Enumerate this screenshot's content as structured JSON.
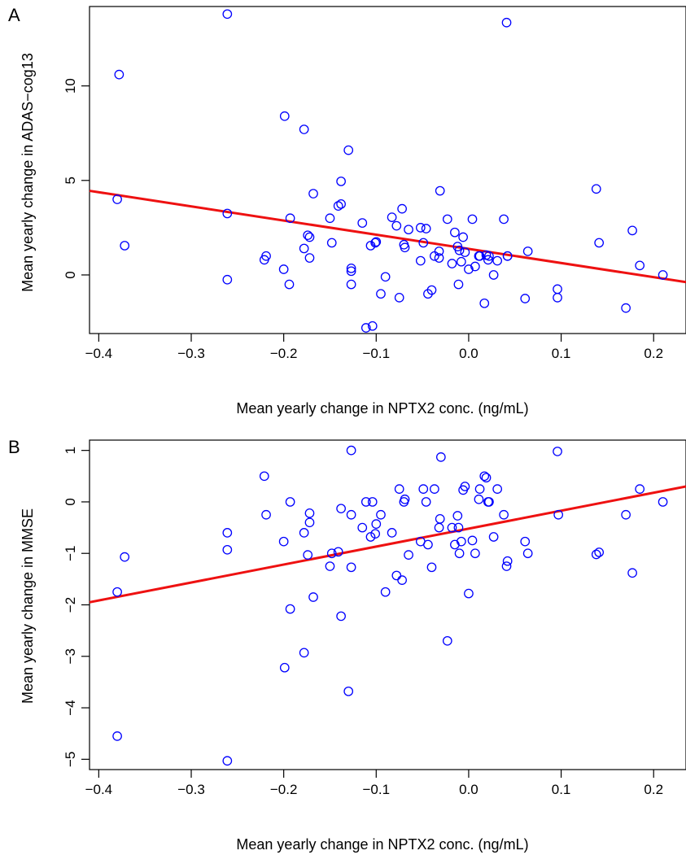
{
  "colors": {
    "points": "#0000ff",
    "fit_line": "#ee1111"
  },
  "chart_data": [
    {
      "type": "scatter",
      "panel_label": "A",
      "xlabel": "Mean yearly change in NPTX2 conc. (ng/mL)",
      "ylabel": "Mean yearly change in ADAS−cog13",
      "xlim": [
        -0.41,
        0.235
      ],
      "ylim": [
        -3.1,
        14.2
      ],
      "xticks": [
        -0.4,
        -0.3,
        -0.2,
        -0.1,
        0.0,
        0.1,
        0.2
      ],
      "xtick_labels": [
        "−0.4",
        "−0.3",
        "−0.2",
        "−0.1",
        "0.0",
        "0.1",
        "0.2"
      ],
      "yticks": [
        0,
        5,
        10
      ],
      "ytick_labels": [
        "0",
        "5",
        "10"
      ],
      "grid": false,
      "fit_line": {
        "x": [
          -0.41,
          0.235
        ],
        "y": [
          4.45,
          -0.38
        ]
      },
      "x": [
        -0.261,
        -0.378,
        -0.38,
        -0.372,
        -0.261,
        -0.261,
        -0.199,
        -0.178,
        -0.193,
        -0.194,
        -0.221,
        -0.219,
        -0.2,
        -0.178,
        -0.172,
        -0.174,
        -0.172,
        -0.168,
        -0.15,
        -0.148,
        -0.141,
        -0.138,
        -0.138,
        -0.13,
        -0.127,
        -0.127,
        -0.127,
        -0.115,
        -0.111,
        -0.106,
        -0.104,
        -0.101,
        -0.1,
        -0.095,
        -0.09,
        -0.083,
        -0.078,
        -0.075,
        -0.072,
        -0.07,
        -0.069,
        -0.065,
        -0.052,
        -0.052,
        -0.049,
        -0.046,
        -0.044,
        -0.04,
        -0.037,
        -0.032,
        -0.032,
        -0.031,
        -0.023,
        -0.018,
        -0.015,
        -0.012,
        -0.011,
        -0.01,
        -0.008,
        -0.006,
        -0.004,
        0.0,
        0.004,
        0.007,
        0.011,
        0.012,
        0.017,
        0.019,
        0.021,
        0.022,
        0.027,
        0.031,
        0.038,
        0.042,
        0.042,
        0.041,
        0.061,
        0.064,
        0.096,
        0.096,
        0.138,
        0.141,
        0.17,
        0.177,
        0.185,
        0.21
      ],
      "y": [
        13.8,
        10.6,
        4.0,
        1.55,
        3.25,
        -0.25,
        8.4,
        7.7,
        3.0,
        -0.5,
        0.8,
        1.0,
        0.3,
        1.4,
        2.0,
        2.1,
        0.9,
        4.3,
        3.0,
        1.7,
        3.65,
        3.75,
        4.95,
        6.6,
        0.2,
        0.35,
        -0.5,
        2.75,
        -2.8,
        1.55,
        -2.7,
        1.7,
        1.75,
        -1.0,
        -0.1,
        3.05,
        2.6,
        -1.2,
        3.5,
        1.6,
        1.45,
        2.4,
        2.5,
        0.75,
        1.7,
        2.45,
        -1.0,
        -0.8,
        1.0,
        0.9,
        1.25,
        4.45,
        2.95,
        0.6,
        2.25,
        1.5,
        -0.5,
        1.3,
        0.7,
        2.0,
        1.2,
        0.3,
        2.95,
        0.45,
        1.0,
        1.0,
        -1.5,
        1.05,
        0.8,
        1.0,
        0.0,
        0.75,
        2.95,
        1.0,
        1.0,
        13.35,
        -1.25,
        1.25,
        -0.75,
        -1.2,
        4.55,
        1.7,
        -1.75,
        2.35,
        0.5,
        0.0
      ]
    },
    {
      "type": "scatter",
      "panel_label": "B",
      "xlabel": "Mean yearly change in NPTX2 conc. (ng/mL)",
      "ylabel": "Mean yearly change in MMSE",
      "xlim": [
        -0.41,
        0.235
      ],
      "ylim": [
        -5.2,
        1.2
      ],
      "xticks": [
        -0.4,
        -0.3,
        -0.2,
        -0.1,
        0.0,
        0.1,
        0.2
      ],
      "xtick_labels": [
        "−0.4",
        "−0.3",
        "−0.2",
        "−0.1",
        "0.0",
        "0.1",
        "0.2"
      ],
      "yticks": [
        -5,
        -4,
        -3,
        -2,
        -1,
        0,
        1
      ],
      "ytick_labels": [
        "−5",
        "−4",
        "−3",
        "−2",
        "−1",
        "0",
        "1"
      ],
      "grid": false,
      "fit_line": {
        "x": [
          -0.41,
          0.235
        ],
        "y": [
          -1.95,
          0.3
        ]
      },
      "x": [
        -0.38,
        -0.38,
        -0.372,
        -0.261,
        -0.261,
        -0.261,
        -0.221,
        -0.219,
        -0.2,
        -0.199,
        -0.193,
        -0.193,
        -0.178,
        -0.178,
        -0.174,
        -0.172,
        -0.172,
        -0.168,
        -0.15,
        -0.148,
        -0.141,
        -0.138,
        -0.138,
        -0.13,
        -0.127,
        -0.127,
        -0.127,
        -0.115,
        -0.111,
        -0.106,
        -0.104,
        -0.101,
        -0.1,
        -0.095,
        -0.09,
        -0.083,
        -0.078,
        -0.075,
        -0.072,
        -0.07,
        -0.069,
        -0.065,
        -0.052,
        -0.049,
        -0.046,
        -0.044,
        -0.04,
        -0.037,
        -0.032,
        -0.031,
        -0.03,
        -0.023,
        -0.018,
        -0.015,
        -0.012,
        -0.011,
        -0.01,
        -0.008,
        -0.006,
        -0.004,
        0.0,
        0.004,
        0.007,
        0.011,
        0.012,
        0.017,
        0.019,
        0.021,
        0.022,
        0.027,
        0.031,
        0.038,
        0.041,
        0.042,
        0.061,
        0.064,
        0.096,
        0.097,
        0.138,
        0.141,
        0.17,
        0.177,
        0.185,
        0.21
      ],
      "y": [
        -1.75,
        -4.55,
        -1.07,
        -0.6,
        -0.93,
        -5.03,
        0.5,
        -0.25,
        -0.77,
        -3.22,
        0.0,
        -2.08,
        -0.6,
        -2.93,
        -1.03,
        -0.4,
        -0.22,
        -1.85,
        -1.25,
        -1.0,
        -0.97,
        -0.13,
        -2.22,
        -3.68,
        -0.25,
        1.0,
        -1.27,
        -0.5,
        0.0,
        -0.68,
        0.0,
        -0.62,
        -0.43,
        -0.25,
        -1.75,
        -0.6,
        -1.43,
        0.25,
        -1.52,
        0.0,
        0.05,
        -1.03,
        -0.77,
        0.25,
        0.0,
        -0.83,
        -1.27,
        0.25,
        -0.5,
        -0.33,
        0.87,
        -2.7,
        -0.5,
        -0.83,
        -0.27,
        -0.5,
        -1.0,
        -0.77,
        0.23,
        0.3,
        -1.78,
        -0.75,
        -1.0,
        0.05,
        0.25,
        0.5,
        0.47,
        0.0,
        0.0,
        -0.68,
        0.25,
        -0.25,
        -1.25,
        -1.15,
        -0.77,
        -1.0,
        0.98,
        -0.25,
        -1.02,
        -0.98,
        -0.25,
        -1.38,
        0.25,
        0.0
      ]
    }
  ]
}
